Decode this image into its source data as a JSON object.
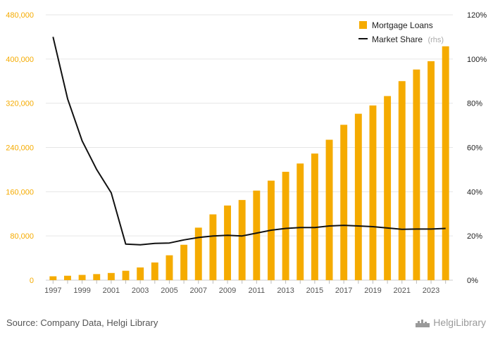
{
  "chart_data": {
    "type": "bar",
    "years": [
      1997,
      1998,
      1999,
      2000,
      2001,
      2002,
      2003,
      2004,
      2005,
      2006,
      2007,
      2008,
      2009,
      2010,
      2011,
      2012,
      2013,
      2014,
      2015,
      2016,
      2017,
      2018,
      2019,
      2020,
      2021,
      2022,
      2023,
      2024
    ],
    "x_tick_labels": [
      "1997",
      "1999",
      "2001",
      "2003",
      "2005",
      "2007",
      "2009",
      "2011",
      "2013",
      "2015",
      "2017",
      "2019",
      "2021",
      "2023"
    ],
    "series": [
      {
        "name": "Mortgage Loans",
        "type": "bar",
        "axis": "left",
        "color": "#f5ab00",
        "values": [
          7000,
          8000,
          9500,
          11000,
          13000,
          17000,
          23000,
          32000,
          45000,
          64000,
          95000,
          119000,
          135000,
          145000,
          162000,
          180000,
          196000,
          211000,
          229000,
          254000,
          281000,
          301000,
          316000,
          333000,
          360000,
          381000,
          396000,
          423000
        ]
      },
      {
        "name": "Market Share",
        "type": "line",
        "axis": "right",
        "color": "#111111",
        "values": [
          110,
          82,
          63,
          50,
          39.5,
          16.3,
          16,
          16.6,
          16.8,
          18.2,
          19.3,
          20,
          20.3,
          20,
          21.3,
          22.6,
          23.4,
          23.8,
          23.8,
          24.5,
          24.8,
          24.5,
          24.2,
          23.6,
          23,
          23.1,
          23.1,
          23.4
        ]
      }
    ],
    "left_axis": {
      "min": 0,
      "max": 480000,
      "ticks": [
        0,
        80000,
        160000,
        240000,
        320000,
        400000,
        480000
      ],
      "tick_labels": [
        "0",
        "80,000",
        "160,000",
        "240,000",
        "320,000",
        "400,000",
        "480,000"
      ]
    },
    "right_axis": {
      "min": 0,
      "max": 120,
      "ticks": [
        0,
        20,
        40,
        60,
        80,
        100,
        120
      ],
      "tick_labels": [
        "0%",
        "20%",
        "40%",
        "60%",
        "80%",
        "100%",
        "120%"
      ]
    },
    "legend": {
      "position": "top-right",
      "items": [
        {
          "label": "Mortgage Loans",
          "note": ""
        },
        {
          "label": "Market Share",
          "note": "(rhs)"
        }
      ]
    },
    "grid": true
  },
  "footer": {
    "source": "Source: Company Data, Helgi Library",
    "brand": "HelgiLibrary"
  },
  "colors": {
    "bar": "#f5ab00",
    "line": "#111111",
    "grid": "#e6e6e6",
    "left_axis_text": "#f5ab00"
  },
  "icons": {
    "brand_logo": "helgi-library-logo-icon"
  }
}
